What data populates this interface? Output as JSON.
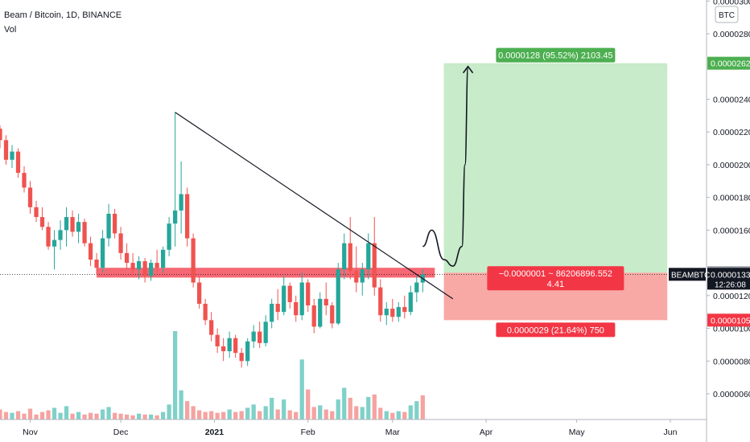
{
  "header": {
    "symbol": "Beam / Bitcoin, 1D, BINANCE",
    "indicator": "Vol"
  },
  "colors": {
    "up": "#26a69a",
    "down": "#ef5350",
    "volume_up": "#7fd1c9",
    "volume_down": "#f5a3a1",
    "resistance_zone": "#f23645",
    "profit_zone": "#c8ebc9",
    "loss_zone": "#f8a9a5",
    "profit_badge": "#4caf50",
    "loss_badge": "#f23645",
    "axis_text": "#131722",
    "price_tag": "#131722"
  },
  "chart_data": {
    "type": "candlestick",
    "title": "Beam / Bitcoin, 1D, BINANCE",
    "price_axis": {
      "unit": "BTC",
      "ylim": [
        4.2e-06,
        3e-05
      ],
      "ticks": [
        "0.0000060",
        "0.0000080",
        "0.0000100",
        "0.0000120",
        "0.0000160",
        "0.0000180",
        "0.0000200",
        "0.0000220",
        "0.0000240",
        "0.0000280",
        "0.0000300"
      ]
    },
    "time_axis": {
      "labels": [
        "Nov",
        "Dec",
        "2021",
        "Feb",
        "Mar",
        "Apr",
        "May",
        "Jun"
      ],
      "xlim": [
        "2020-10-22",
        "2021-06-13"
      ]
    },
    "candles": [
      {
        "date": "2020-10-22",
        "o": 2.22e-05,
        "h": 2.24e-05,
        "l": 2.1e-05,
        "c": 2.15e-05
      },
      {
        "date": "2020-10-24",
        "o": 2.15e-05,
        "h": 2.18e-05,
        "l": 2e-05,
        "c": 2.03e-05
      },
      {
        "date": "2020-10-26",
        "o": 2.03e-05,
        "h": 2.12e-05,
        "l": 1.98e-05,
        "c": 2.08e-05
      },
      {
        "date": "2020-10-28",
        "o": 2.08e-05,
        "h": 2.1e-05,
        "l": 1.92e-05,
        "c": 1.95e-05
      },
      {
        "date": "2020-10-30",
        "o": 1.95e-05,
        "h": 1.99e-05,
        "l": 1.83e-05,
        "c": 1.86e-05
      },
      {
        "date": "2020-11-01",
        "o": 1.86e-05,
        "h": 1.9e-05,
        "l": 1.7e-05,
        "c": 1.74e-05
      },
      {
        "date": "2020-11-03",
        "o": 1.74e-05,
        "h": 1.78e-05,
        "l": 1.65e-05,
        "c": 1.68e-05
      },
      {
        "date": "2020-11-05",
        "o": 1.68e-05,
        "h": 1.74e-05,
        "l": 1.6e-05,
        "c": 1.62e-05
      },
      {
        "date": "2020-11-07",
        "o": 1.62e-05,
        "h": 1.65e-05,
        "l": 1.48e-05,
        "c": 1.5e-05
      },
      {
        "date": "2020-11-09",
        "o": 1.5e-05,
        "h": 1.6e-05,
        "l": 1.36e-05,
        "c": 1.54e-05
      },
      {
        "date": "2020-11-11",
        "o": 1.54e-05,
        "h": 1.66e-05,
        "l": 1.48e-05,
        "c": 1.6e-05
      },
      {
        "date": "2020-11-13",
        "o": 1.6e-05,
        "h": 1.74e-05,
        "l": 1.5e-05,
        "c": 1.68e-05
      },
      {
        "date": "2020-11-15",
        "o": 1.68e-05,
        "h": 1.72e-05,
        "l": 1.56e-05,
        "c": 1.59e-05
      },
      {
        "date": "2020-11-17",
        "o": 1.59e-05,
        "h": 1.7e-05,
        "l": 1.52e-05,
        "c": 1.65e-05
      },
      {
        "date": "2020-11-19",
        "o": 1.65e-05,
        "h": 1.67e-05,
        "l": 1.5e-05,
        "c": 1.52e-05
      },
      {
        "date": "2020-11-21",
        "o": 1.52e-05,
        "h": 1.56e-05,
        "l": 1.38e-05,
        "c": 1.42e-05
      },
      {
        "date": "2020-11-23",
        "o": 1.42e-05,
        "h": 1.46e-05,
        "l": 1.33e-05,
        "c": 1.37e-05
      },
      {
        "date": "2020-11-25",
        "o": 1.37e-05,
        "h": 1.6e-05,
        "l": 1.34e-05,
        "c": 1.55e-05
      },
      {
        "date": "2020-11-27",
        "o": 1.55e-05,
        "h": 1.76e-05,
        "l": 1.5e-05,
        "c": 1.7e-05
      },
      {
        "date": "2020-11-29",
        "o": 1.7e-05,
        "h": 1.73e-05,
        "l": 1.55e-05,
        "c": 1.58e-05
      },
      {
        "date": "2020-12-01",
        "o": 1.58e-05,
        "h": 1.62e-05,
        "l": 1.42e-05,
        "c": 1.46e-05
      },
      {
        "date": "2020-12-03",
        "o": 1.46e-05,
        "h": 1.52e-05,
        "l": 1.36e-05,
        "c": 1.4e-05
      },
      {
        "date": "2020-12-05",
        "o": 1.4e-05,
        "h": 1.46e-05,
        "l": 1.32e-05,
        "c": 1.36e-05
      },
      {
        "date": "2020-12-07",
        "o": 1.36e-05,
        "h": 1.44e-05,
        "l": 1.3e-05,
        "c": 1.41e-05
      },
      {
        "date": "2020-12-09",
        "o": 1.41e-05,
        "h": 1.43e-05,
        "l": 1.28e-05,
        "c": 1.32e-05
      },
      {
        "date": "2020-12-11",
        "o": 1.32e-05,
        "h": 1.42e-05,
        "l": 1.29e-05,
        "c": 1.4e-05
      },
      {
        "date": "2020-12-13",
        "o": 1.4e-05,
        "h": 1.48e-05,
        "l": 1.34e-05,
        "c": 1.37e-05
      },
      {
        "date": "2020-12-15",
        "o": 1.37e-05,
        "h": 1.5e-05,
        "l": 1.34e-05,
        "c": 1.48e-05
      },
      {
        "date": "2020-12-17",
        "o": 1.48e-05,
        "h": 1.68e-05,
        "l": 1.44e-05,
        "c": 1.64e-05
      },
      {
        "date": "2020-12-19",
        "o": 1.64e-05,
        "h": 2.32e-05,
        "l": 1.5e-05,
        "c": 1.72e-05
      },
      {
        "date": "2020-12-21",
        "o": 1.72e-05,
        "h": 2.02e-05,
        "l": 1.58e-05,
        "c": 1.82e-05
      },
      {
        "date": "2020-12-23",
        "o": 1.82e-05,
        "h": 1.86e-05,
        "l": 1.5e-05,
        "c": 1.55e-05
      },
      {
        "date": "2020-12-25",
        "o": 1.55e-05,
        "h": 1.58e-05,
        "l": 1.25e-05,
        "c": 1.28e-05
      },
      {
        "date": "2020-12-27",
        "o": 1.28e-05,
        "h": 1.32e-05,
        "l": 1.12e-05,
        "c": 1.15e-05
      },
      {
        "date": "2020-12-29",
        "o": 1.15e-05,
        "h": 1.18e-05,
        "l": 1.02e-05,
        "c": 1.05e-05
      },
      {
        "date": "2020-12-31",
        "o": 1.05e-05,
        "h": 1.1e-05,
        "l": 9.2e-06,
        "c": 9.6e-06
      },
      {
        "date": "2021-01-02",
        "o": 9.6e-06,
        "h": 1e-05,
        "l": 8.5e-06,
        "c": 8.9e-06
      },
      {
        "date": "2021-01-04",
        "o": 8.9e-06,
        "h": 9.4e-06,
        "l": 8e-06,
        "c": 8.6e-06
      },
      {
        "date": "2021-01-06",
        "o": 8.6e-06,
        "h": 9.8e-06,
        "l": 8.2e-06,
        "c": 9.4e-06
      },
      {
        "date": "2021-01-08",
        "o": 9.4e-06,
        "h": 9.6e-06,
        "l": 8.2e-06,
        "c": 8.5e-06
      },
      {
        "date": "2021-01-10",
        "o": 8.5e-06,
        "h": 8.8e-06,
        "l": 7.6e-06,
        "c": 8e-06
      },
      {
        "date": "2021-01-12",
        "o": 8e-06,
        "h": 9.4e-06,
        "l": 7.7e-06,
        "c": 9.2e-06
      },
      {
        "date": "2021-01-14",
        "o": 9.2e-06,
        "h": 1.02e-05,
        "l": 8.8e-06,
        "c": 9.8e-06
      },
      {
        "date": "2021-01-16",
        "o": 9.8e-06,
        "h": 1.04e-05,
        "l": 8.8e-06,
        "c": 9.1e-06
      },
      {
        "date": "2021-01-18",
        "o": 9.1e-06,
        "h": 1.08e-05,
        "l": 8.9e-06,
        "c": 1.04e-05
      },
      {
        "date": "2021-01-20",
        "o": 1.04e-05,
        "h": 1.18e-05,
        "l": 1e-05,
        "c": 1.15e-05
      },
      {
        "date": "2021-01-22",
        "o": 1.15e-05,
        "h": 1.24e-05,
        "l": 1.05e-05,
        "c": 1.1e-05
      },
      {
        "date": "2021-01-24",
        "o": 1.1e-05,
        "h": 1.32e-05,
        "l": 1.08e-05,
        "c": 1.26e-05
      },
      {
        "date": "2021-01-26",
        "o": 1.26e-05,
        "h": 1.28e-05,
        "l": 1.12e-05,
        "c": 1.16e-05
      },
      {
        "date": "2021-01-28",
        "o": 1.16e-05,
        "h": 1.2e-05,
        "l": 1.04e-05,
        "c": 1.08e-05
      },
      {
        "date": "2021-01-30",
        "o": 1.08e-05,
        "h": 1.34e-05,
        "l": 1.05e-05,
        "c": 1.28e-05
      },
      {
        "date": "2021-02-01",
        "o": 1.28e-05,
        "h": 1.3e-05,
        "l": 1.1e-05,
        "c": 1.14e-05
      },
      {
        "date": "2021-02-03",
        "o": 1.14e-05,
        "h": 1.18e-05,
        "l": 9.7e-06,
        "c": 1.01e-05
      },
      {
        "date": "2021-02-05",
        "o": 1.01e-05,
        "h": 1.22e-05,
        "l": 1e-05,
        "c": 1.18e-05
      },
      {
        "date": "2021-02-07",
        "o": 1.18e-05,
        "h": 1.28e-05,
        "l": 1.08e-05,
        "c": 1.14e-05
      },
      {
        "date": "2021-02-09",
        "o": 1.14e-05,
        "h": 1.16e-05,
        "l": 1e-05,
        "c": 1.03e-05
      },
      {
        "date": "2021-02-11",
        "o": 1.03e-05,
        "h": 1.4e-05,
        "l": 1.02e-05,
        "c": 1.36e-05
      },
      {
        "date": "2021-02-13",
        "o": 1.36e-05,
        "h": 1.58e-05,
        "l": 1.3e-05,
        "c": 1.52e-05
      },
      {
        "date": "2021-02-15",
        "o": 1.52e-05,
        "h": 1.68e-05,
        "l": 1.3e-05,
        "c": 1.35e-05
      },
      {
        "date": "2021-02-17",
        "o": 1.35e-05,
        "h": 1.5e-05,
        "l": 1.22e-05,
        "c": 1.28e-05
      },
      {
        "date": "2021-02-19",
        "o": 1.28e-05,
        "h": 1.4e-05,
        "l": 1.2e-05,
        "c": 1.36e-05
      },
      {
        "date": "2021-02-21",
        "o": 1.36e-05,
        "h": 1.58e-05,
        "l": 1.3e-05,
        "c": 1.52e-05
      },
      {
        "date": "2021-02-23",
        "o": 1.52e-05,
        "h": 1.68e-05,
        "l": 1.2e-05,
        "c": 1.25e-05
      },
      {
        "date": "2021-02-25",
        "o": 1.25e-05,
        "h": 1.3e-05,
        "l": 1.04e-05,
        "c": 1.08e-05
      },
      {
        "date": "2021-02-27",
        "o": 1.08e-05,
        "h": 1.16e-05,
        "l": 1.02e-05,
        "c": 1.12e-05
      },
      {
        "date": "2021-03-01",
        "o": 1.12e-05,
        "h": 1.18e-05,
        "l": 1.04e-05,
        "c": 1.07e-05
      },
      {
        "date": "2021-03-03",
        "o": 1.07e-05,
        "h": 1.16e-05,
        "l": 1.04e-05,
        "c": 1.13e-05
      },
      {
        "date": "2021-03-05",
        "o": 1.13e-05,
        "h": 1.2e-05,
        "l": 1.06e-05,
        "c": 1.1e-05
      },
      {
        "date": "2021-03-07",
        "o": 1.1e-05,
        "h": 1.26e-05,
        "l": 1.08e-05,
        "c": 1.22e-05
      },
      {
        "date": "2021-03-09",
        "o": 1.22e-05,
        "h": 1.32e-05,
        "l": 1.16e-05,
        "c": 1.28e-05
      },
      {
        "date": "2021-03-11",
        "o": 1.28e-05,
        "h": 1.36e-05,
        "l": 1.22e-05,
        "c": 1.33e-05
      }
    ],
    "volume": [
      {
        "date": "2020-10-22",
        "v": 1.2,
        "up": false
      },
      {
        "date": "2020-10-24",
        "v": 0.9,
        "up": false
      },
      {
        "date": "2020-10-26",
        "v": 0.8,
        "up": true
      },
      {
        "date": "2020-10-28",
        "v": 1.0,
        "up": false
      },
      {
        "date": "2020-10-30",
        "v": 0.7,
        "up": false
      },
      {
        "date": "2020-11-01",
        "v": 1.3,
        "up": false
      },
      {
        "date": "2020-11-03",
        "v": 0.6,
        "up": false
      },
      {
        "date": "2020-11-05",
        "v": 0.9,
        "up": false
      },
      {
        "date": "2020-11-07",
        "v": 1.1,
        "up": false
      },
      {
        "date": "2020-11-09",
        "v": 1.4,
        "up": true
      },
      {
        "date": "2020-11-11",
        "v": 0.8,
        "up": true
      },
      {
        "date": "2020-11-13",
        "v": 1.6,
        "up": true
      },
      {
        "date": "2020-11-15",
        "v": 0.7,
        "up": false
      },
      {
        "date": "2020-11-17",
        "v": 0.9,
        "up": true
      },
      {
        "date": "2020-11-19",
        "v": 0.6,
        "up": false
      },
      {
        "date": "2020-11-21",
        "v": 0.8,
        "up": false
      },
      {
        "date": "2020-11-23",
        "v": 0.7,
        "up": false
      },
      {
        "date": "2020-11-25",
        "v": 1.2,
        "up": true
      },
      {
        "date": "2020-11-27",
        "v": 1.5,
        "up": true
      },
      {
        "date": "2020-11-29",
        "v": 0.8,
        "up": false
      },
      {
        "date": "2020-12-01",
        "v": 0.7,
        "up": false
      },
      {
        "date": "2020-12-03",
        "v": 0.6,
        "up": false
      },
      {
        "date": "2020-12-05",
        "v": 0.5,
        "up": false
      },
      {
        "date": "2020-12-07",
        "v": 0.7,
        "up": true
      },
      {
        "date": "2020-12-09",
        "v": 0.6,
        "up": false
      },
      {
        "date": "2020-12-11",
        "v": 0.6,
        "up": true
      },
      {
        "date": "2020-12-13",
        "v": 0.5,
        "up": false
      },
      {
        "date": "2020-12-15",
        "v": 0.9,
        "up": true
      },
      {
        "date": "2020-12-17",
        "v": 1.8,
        "up": true
      },
      {
        "date": "2020-12-19",
        "v": 10.6,
        "up": true
      },
      {
        "date": "2020-12-21",
        "v": 3.5,
        "up": true
      },
      {
        "date": "2020-12-23",
        "v": 2.2,
        "up": false
      },
      {
        "date": "2020-12-25",
        "v": 1.6,
        "up": false
      },
      {
        "date": "2020-12-27",
        "v": 1.1,
        "up": false
      },
      {
        "date": "2020-12-29",
        "v": 0.9,
        "up": false
      },
      {
        "date": "2020-12-31",
        "v": 1.0,
        "up": false
      },
      {
        "date": "2021-01-02",
        "v": 0.8,
        "up": false
      },
      {
        "date": "2021-01-04",
        "v": 0.9,
        "up": false
      },
      {
        "date": "2021-01-06",
        "v": 1.2,
        "up": true
      },
      {
        "date": "2021-01-08",
        "v": 0.9,
        "up": false
      },
      {
        "date": "2021-01-10",
        "v": 1.0,
        "up": false
      },
      {
        "date": "2021-01-12",
        "v": 1.4,
        "up": true
      },
      {
        "date": "2021-01-14",
        "v": 1.8,
        "up": true
      },
      {
        "date": "2021-01-16",
        "v": 1.0,
        "up": false
      },
      {
        "date": "2021-01-18",
        "v": 1.6,
        "up": true
      },
      {
        "date": "2021-01-20",
        "v": 2.6,
        "up": true
      },
      {
        "date": "2021-01-22",
        "v": 1.2,
        "up": false
      },
      {
        "date": "2021-01-24",
        "v": 2.4,
        "up": true
      },
      {
        "date": "2021-01-26",
        "v": 1.1,
        "up": false
      },
      {
        "date": "2021-01-28",
        "v": 0.9,
        "up": false
      },
      {
        "date": "2021-01-30",
        "v": 7.2,
        "up": true
      },
      {
        "date": "2021-02-01",
        "v": 3.6,
        "up": false
      },
      {
        "date": "2021-02-03",
        "v": 1.5,
        "up": false
      },
      {
        "date": "2021-02-05",
        "v": 1.7,
        "up": true
      },
      {
        "date": "2021-02-07",
        "v": 1.2,
        "up": false
      },
      {
        "date": "2021-02-09",
        "v": 1.0,
        "up": false
      },
      {
        "date": "2021-02-11",
        "v": 2.4,
        "up": true
      },
      {
        "date": "2021-02-13",
        "v": 3.8,
        "up": true
      },
      {
        "date": "2021-02-15",
        "v": 2.6,
        "up": false
      },
      {
        "date": "2021-02-17",
        "v": 1.6,
        "up": false
      },
      {
        "date": "2021-02-19",
        "v": 1.5,
        "up": true
      },
      {
        "date": "2021-02-21",
        "v": 2.7,
        "up": true
      },
      {
        "date": "2021-02-23",
        "v": 3.0,
        "up": false
      },
      {
        "date": "2021-02-25",
        "v": 1.4,
        "up": false
      },
      {
        "date": "2021-02-27",
        "v": 1.0,
        "up": true
      },
      {
        "date": "2021-03-01",
        "v": 0.8,
        "up": false
      },
      {
        "date": "2021-03-03",
        "v": 1.0,
        "up": true
      },
      {
        "date": "2021-03-05",
        "v": 0.9,
        "up": false
      },
      {
        "date": "2021-03-07",
        "v": 1.7,
        "up": true
      },
      {
        "date": "2021-03-09",
        "v": 2.2,
        "up": true
      },
      {
        "date": "2021-03-11",
        "v": 2.9,
        "up": false
      }
    ],
    "trendline": {
      "from": {
        "date": "2020-12-19",
        "price": 2.32e-05
      },
      "to": {
        "date": "2021-03-21",
        "price": 1.18e-05
      }
    },
    "resistance_zone": {
      "from": "2020-11-23",
      "to": "2021-03-15",
      "low": 1.31e-05,
      "high": 1.37e-05
    },
    "projection_path": [
      {
        "date": "2021-03-11",
        "price": 1.5e-05
      },
      {
        "date": "2021-03-14",
        "price": 1.6e-05
      },
      {
        "date": "2021-03-18",
        "price": 1.42e-05
      },
      {
        "date": "2021-03-21",
        "price": 1.38e-05
      },
      {
        "date": "2021-03-24",
        "price": 1.5e-05
      },
      {
        "date": "2021-03-25",
        "price": 2e-05
      },
      {
        "date": "2021-03-26",
        "price": 2.6e-05
      }
    ],
    "position": {
      "from": "2021-03-18",
      "to": "2021-05-31",
      "entry": 1.34e-05,
      "target": 2.62e-05,
      "stop": 1.05e-05,
      "target_label": "0.0000128 (95.52%) 2103.45",
      "entry_label_line1": "−0.0000001 ~ 86206896.552",
      "entry_label_line2": "4.41",
      "stop_label": "0.0000029 (21.64%) 750"
    },
    "current": {
      "price": 1.33e-05,
      "price_label": "0.0000133",
      "countdown": "12:26:08",
      "symbol_tag": "BEAMBTC"
    },
    "axis_tags": {
      "target": "0.0000262",
      "entry": "0.0000134",
      "stop": "0.0000105"
    }
  }
}
